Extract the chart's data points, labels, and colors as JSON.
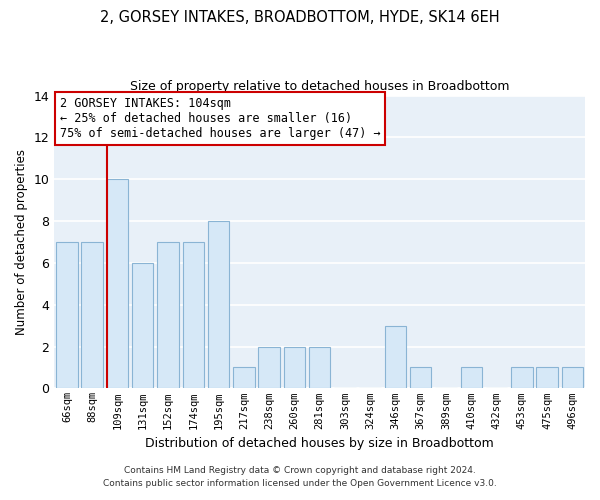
{
  "title": "2, GORSEY INTAKES, BROADBOTTOM, HYDE, SK14 6EH",
  "subtitle": "Size of property relative to detached houses in Broadbottom",
  "xlabel": "Distribution of detached houses by size in Broadbottom",
  "ylabel": "Number of detached properties",
  "bar_labels": [
    "66sqm",
    "88sqm",
    "109sqm",
    "131sqm",
    "152sqm",
    "174sqm",
    "195sqm",
    "217sqm",
    "238sqm",
    "260sqm",
    "281sqm",
    "303sqm",
    "324sqm",
    "346sqm",
    "367sqm",
    "389sqm",
    "410sqm",
    "432sqm",
    "453sqm",
    "475sqm",
    "496sqm"
  ],
  "bar_values": [
    7,
    7,
    10,
    6,
    7,
    7,
    8,
    1,
    2,
    2,
    2,
    0,
    0,
    3,
    1,
    0,
    1,
    0,
    1,
    1,
    1
  ],
  "bar_color": "#d6e8f7",
  "bar_edge_color": "#8ab4d4",
  "vline_color": "#cc0000",
  "ylim": [
    0,
    14
  ],
  "yticks": [
    0,
    2,
    4,
    6,
    8,
    10,
    12,
    14
  ],
  "annotation_text": "2 GORSEY INTAKES: 104sqm\n← 25% of detached houses are smaller (16)\n75% of semi-detached houses are larger (47) →",
  "annotation_box_edgecolor": "#cc0000",
  "footer_line1": "Contains HM Land Registry data © Crown copyright and database right 2024.",
  "footer_line2": "Contains public sector information licensed under the Open Government Licence v3.0.",
  "grid_color": "#e8e8e8",
  "bg_color": "#ffffff",
  "plot_bg_color": "#e8f0f8"
}
